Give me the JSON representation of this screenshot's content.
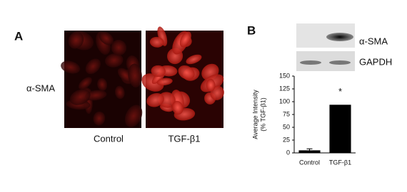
{
  "panel_a": {
    "label": "A",
    "row_label": "α-SMA",
    "columns": [
      "Control",
      "TGF-β1"
    ]
  },
  "panel_b": {
    "label": "B",
    "blot_labels": [
      "α-SMA",
      "GAPDH"
    ]
  },
  "chart_data": {
    "type": "bar",
    "y_label": [
      "Average Intensity",
      "(% TGF-β1)"
    ],
    "categories": [
      "Control",
      "TGF-β1"
    ],
    "values": [
      5,
      94
    ],
    "errors": [
      3,
      0
    ],
    "color": "#000000",
    "annotation": "*",
    "ylim": [
      0,
      150
    ],
    "yticks": [
      0,
      25,
      50,
      75,
      100,
      125,
      150
    ]
  }
}
